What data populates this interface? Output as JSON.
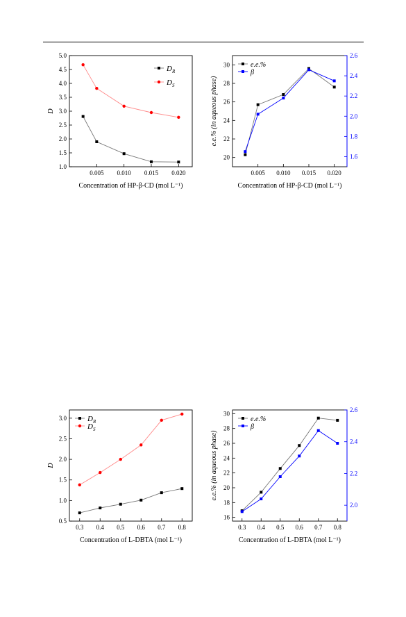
{
  "chart_data": [
    {
      "type": "line",
      "xlabel": "Concentration of HP-β-CD (mol L⁻¹)",
      "ylabel": "D",
      "xlim": [
        0.0,
        0.0225
      ],
      "ylim": [
        1.0,
        5.0
      ],
      "xticks": [
        "0.005",
        "0.010",
        "0.015",
        "0.020"
      ],
      "yticks": [
        "1.0",
        "1.5",
        "2.0",
        "2.5",
        "3.0",
        "3.5",
        "4.0",
        "4.5",
        "5.0"
      ],
      "legend_position": "top-right",
      "series": [
        {
          "name": "D_R",
          "color": "#000000",
          "marker": "square",
          "x": [
            0.0025,
            0.005,
            0.01,
            0.015,
            0.02
          ],
          "y": [
            2.81,
            1.9,
            1.47,
            1.18,
            1.17
          ]
        },
        {
          "name": "D_S",
          "color": "#ff0000",
          "marker": "circle",
          "x": [
            0.0025,
            0.005,
            0.01,
            0.015,
            0.02
          ],
          "y": [
            4.67,
            3.82,
            3.18,
            2.95,
            2.78
          ]
        }
      ]
    },
    {
      "type": "line",
      "xlabel": "Concentration of HP-β-CD (mol L⁻¹)",
      "ylabel": "e.e.% (in aqueous phase)",
      "y2label": "β",
      "xlim": [
        0.0,
        0.0225
      ],
      "ylim": [
        19.0,
        31.0
      ],
      "y2lim": [
        1.5,
        2.6
      ],
      "xticks": [
        "0.005",
        "0.010",
        "0.015",
        "0.020"
      ],
      "yticks": [
        "20",
        "22",
        "24",
        "26",
        "28",
        "30"
      ],
      "y2ticks": [
        "1.6",
        "1.8",
        "2.0",
        "2.2",
        "2.4",
        "2.6"
      ],
      "legend_position": "top-left",
      "series": [
        {
          "name": "e.e.%",
          "axis": "left",
          "color": "#000000",
          "marker": "square",
          "x": [
            0.0025,
            0.005,
            0.01,
            0.015,
            0.02
          ],
          "y": [
            20.3,
            25.7,
            26.8,
            29.6,
            27.6
          ]
        },
        {
          "name": "β",
          "axis": "right",
          "color": "#0000ff",
          "marker": "square",
          "x": [
            0.0025,
            0.005,
            0.01,
            0.015,
            0.02
          ],
          "y": [
            1.65,
            2.02,
            2.18,
            2.46,
            2.35
          ]
        }
      ]
    },
    {
      "type": "line",
      "xlabel": "Concentration of L-DBTA (mol L⁻¹)",
      "ylabel": "D",
      "xlim": [
        0.25,
        0.85
      ],
      "ylim": [
        0.5,
        3.2
      ],
      "xticks": [
        "0.3",
        "0.4",
        "0.5",
        "0.6",
        "0.7",
        "0.8"
      ],
      "yticks": [
        "0.5",
        "1.0",
        "1.5",
        "2.0",
        "2.5",
        "3.0"
      ],
      "legend_position": "top-left",
      "series": [
        {
          "name": "D_R",
          "color": "#000000",
          "marker": "square",
          "x": [
            0.3,
            0.4,
            0.5,
            0.6,
            0.7,
            0.8
          ],
          "y": [
            0.7,
            0.82,
            0.91,
            1.01,
            1.19,
            1.29
          ]
        },
        {
          "name": "D_S",
          "color": "#ff0000",
          "marker": "circle",
          "x": [
            0.3,
            0.4,
            0.5,
            0.6,
            0.7,
            0.8
          ],
          "y": [
            1.38,
            1.68,
            2.0,
            2.35,
            2.95,
            3.1
          ]
        }
      ]
    },
    {
      "type": "line",
      "xlabel": "Concentration of L-DBTA (mol L⁻¹)",
      "ylabel": "e.e.% (in aqueous phase)",
      "y2label": "β",
      "xlim": [
        0.25,
        0.85
      ],
      "ylim": [
        15.5,
        30.5
      ],
      "y2lim": [
        1.9,
        2.6
      ],
      "xticks": [
        "0.3",
        "0.4",
        "0.5",
        "0.6",
        "0.7",
        "0.8"
      ],
      "yticks": [
        "16",
        "18",
        "20",
        "22",
        "24",
        "26",
        "28",
        "30"
      ],
      "y2ticks": [
        "2.0",
        "2.2",
        "2.4",
        "2.6"
      ],
      "legend_position": "top-left",
      "series": [
        {
          "name": "e.e.%",
          "axis": "left",
          "color": "#000000",
          "marker": "square",
          "x": [
            0.3,
            0.4,
            0.5,
            0.6,
            0.7,
            0.8
          ],
          "y": [
            16.9,
            19.4,
            22.6,
            25.7,
            29.4,
            29.1
          ]
        },
        {
          "name": "β",
          "axis": "right",
          "color": "#0000ff",
          "marker": "square",
          "x": [
            0.3,
            0.4,
            0.5,
            0.6,
            0.7,
            0.8
          ],
          "y": [
            1.96,
            2.04,
            2.18,
            2.31,
            2.47,
            2.39
          ]
        }
      ]
    }
  ]
}
